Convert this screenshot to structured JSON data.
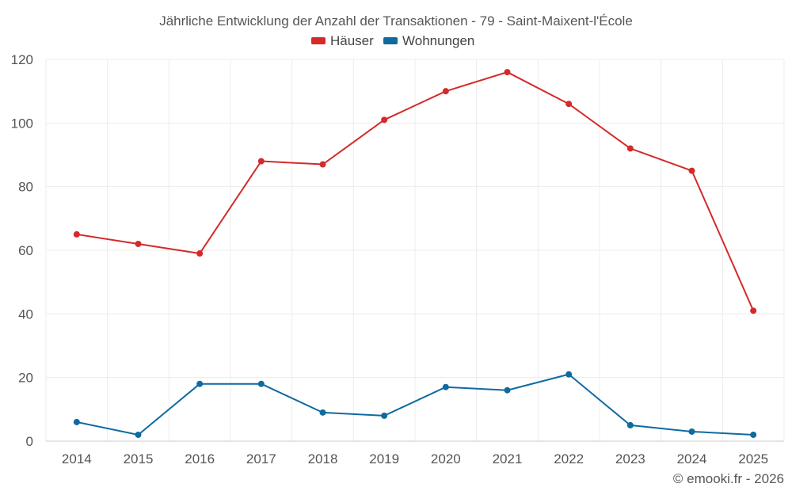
{
  "chart_data": {
    "type": "line",
    "title": "Jährliche Entwicklung der Anzahl der Transaktionen - 79 - Saint-Maixent-l'École",
    "categories": [
      "2014",
      "2015",
      "2016",
      "2017",
      "2018",
      "2019",
      "2020",
      "2021",
      "2022",
      "2023",
      "2024",
      "2025"
    ],
    "series": [
      {
        "name": "Häuser",
        "color": "#d42a2a",
        "values": [
          65,
          62,
          59,
          88,
          87,
          101,
          110,
          116,
          106,
          92,
          85,
          41
        ]
      },
      {
        "name": "Wohnungen",
        "color": "#0f6aa0",
        "values": [
          6,
          2,
          18,
          18,
          9,
          8,
          17,
          16,
          21,
          5,
          3,
          2
        ]
      }
    ],
    "ylim": [
      0,
      120
    ],
    "yticks": [
      0,
      20,
      40,
      60,
      80,
      100,
      120
    ],
    "xlabel": "",
    "ylabel": "",
    "grid": true,
    "legend_position": "top-center"
  },
  "footer": {
    "credit": "© emooki.fr - 2026"
  }
}
